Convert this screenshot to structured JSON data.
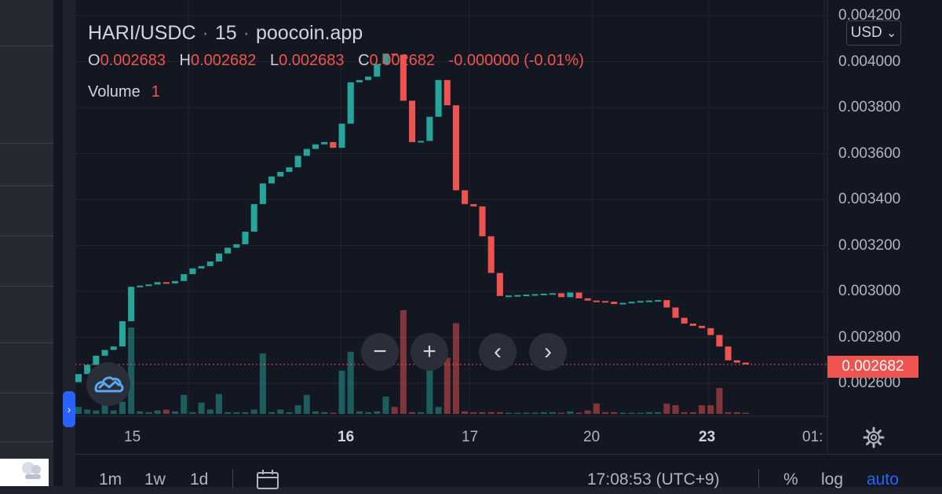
{
  "header": {
    "symbol": "HARI/USDC",
    "interval": "15",
    "source": "poocoin.app",
    "ohlc": {
      "o_key": "O",
      "o_val": "0.002683",
      "h_key": "H",
      "h_val": "0.002682",
      "l_key": "L",
      "l_val": "0.002683",
      "c_key": "C",
      "c_val": "0.002682",
      "change": "-0.000000 (-0.01%)"
    },
    "volume_label": "Volume",
    "volume_value": "1",
    "currency_button": "USD",
    "currency_chevron": "⌄"
  },
  "price_axis": {
    "labels": [
      "0.004200",
      "0.004000",
      "0.003800",
      "0.003600",
      "0.003400",
      "0.003200",
      "0.003000",
      "0.002800",
      "0.002600"
    ],
    "last_price": "0.002682"
  },
  "time_axis": {
    "labels": [
      {
        "text": "15",
        "bold": false
      },
      {
        "text": "16",
        "bold": true
      },
      {
        "text": "17",
        "bold": false
      },
      {
        "text": "20",
        "bold": false
      },
      {
        "text": "23",
        "bold": true
      },
      {
        "text": "01:",
        "bold": false
      }
    ]
  },
  "controls": {
    "zoom_out": "−",
    "zoom_in": "+",
    "scroll_left": "‹",
    "scroll_right": "›",
    "collapse": "›"
  },
  "bottom_bar": {
    "ranges": [
      "1m",
      "1w",
      "1d"
    ],
    "clock": "17:08:53 (UTC+9)",
    "percent": "%",
    "log": "log",
    "auto": "auto"
  },
  "icons": {
    "tradingview": "tradingview-logo-icon",
    "settings": "gear-icon",
    "calendar": "calendar-range-icon",
    "avatar": "logo-thumbnail-icon"
  },
  "colors": {
    "up": "#26a69a",
    "down": "#ef5350",
    "background": "#131722",
    "accent": "#2962ff"
  },
  "chart_data": {
    "type": "candlestick",
    "y_axis": {
      "min": 0.00246,
      "max": 0.00422,
      "scale": "linear"
    },
    "grid": true,
    "last_price_line": 0.002682,
    "candles": [
      [
        0.002605,
        0.00264
      ],
      [
        0.00264,
        0.00268
      ],
      [
        0.00268,
        0.00272
      ],
      [
        0.00272,
        0.002745
      ],
      [
        0.002745,
        0.00276
      ],
      [
        0.00276,
        0.00287
      ],
      [
        0.00287,
        0.00302
      ],
      [
        0.00302,
        0.003025
      ],
      [
        0.003025,
        0.00303
      ],
      [
        0.00303,
        0.00304
      ],
      [
        0.00304,
        0.003035
      ],
      [
        0.003035,
        0.003045
      ],
      [
        0.003045,
        0.003075
      ],
      [
        0.003075,
        0.0031
      ],
      [
        0.0031,
        0.00311
      ],
      [
        0.00311,
        0.00313
      ],
      [
        0.00313,
        0.003165
      ],
      [
        0.003165,
        0.00319
      ],
      [
        0.00319,
        0.003205
      ],
      [
        0.003205,
        0.00326
      ],
      [
        0.00326,
        0.00338
      ],
      [
        0.00338,
        0.00347
      ],
      [
        0.00347,
        0.0035
      ],
      [
        0.0035,
        0.00352
      ],
      [
        0.00352,
        0.00354
      ],
      [
        0.00354,
        0.00359
      ],
      [
        0.00359,
        0.00362
      ],
      [
        0.00362,
        0.00364
      ],
      [
        0.00364,
        0.00365
      ],
      [
        0.00365,
        0.003625
      ],
      [
        0.003625,
        0.00373
      ],
      [
        0.00373,
        0.00391
      ],
      [
        0.00391,
        0.00392
      ],
      [
        0.00392,
        0.003935
      ],
      [
        0.003935,
        0.00399
      ],
      [
        0.00399,
        0.004035
      ],
      [
        0.004035,
        0.00403
      ],
      [
        0.00403,
        0.00383
      ],
      [
        0.00383,
        0.00365
      ],
      [
        0.00365,
        0.003655
      ],
      [
        0.003655,
        0.00376
      ],
      [
        0.00376,
        0.00392
      ],
      [
        0.00392,
        0.00381
      ],
      [
        0.00381,
        0.00344
      ],
      [
        0.00344,
        0.00338
      ],
      [
        0.00338,
        0.00337
      ],
      [
        0.00337,
        0.00324
      ],
      [
        0.00324,
        0.00308
      ],
      [
        0.00308,
        0.00298
      ],
      [
        0.00298,
        0.002982
      ],
      [
        0.002982,
        0.002984
      ],
      [
        0.002984,
        0.002986
      ],
      [
        0.002986,
        0.002988
      ],
      [
        0.002988,
        0.00299
      ],
      [
        0.00299,
        0.002992
      ],
      [
        0.002992,
        0.002975
      ],
      [
        0.002975,
        0.002995
      ],
      [
        0.002995,
        0.00297
      ],
      [
        0.00297,
        0.00296
      ],
      [
        0.00296,
        0.002958
      ],
      [
        0.002958,
        0.002955
      ],
      [
        0.002955,
        0.002945
      ],
      [
        0.002945,
        0.00295
      ],
      [
        0.00295,
        0.002955
      ],
      [
        0.002955,
        0.002958
      ],
      [
        0.002958,
        0.00296
      ],
      [
        0.00296,
        0.002962
      ],
      [
        0.002962,
        0.00293
      ],
      [
        0.00293,
        0.002885
      ],
      [
        0.002885,
        0.00286
      ],
      [
        0.00286,
        0.00285
      ],
      [
        0.00285,
        0.00284
      ],
      [
        0.00284,
        0.00281
      ],
      [
        0.00281,
        0.00276
      ],
      [
        0.00276,
        0.0027
      ],
      [
        0.0027,
        0.00269
      ],
      [
        0.00269,
        0.002682
      ]
    ],
    "volumes": [
      0.08,
      0.05,
      0.04,
      0.2,
      0.04,
      0.14,
      1,
      0.03,
      0.02,
      0.04,
      0.05,
      0.03,
      0.22,
      0.02,
      0.13,
      0.05,
      0.23,
      0.02,
      0.02,
      0.02,
      0.05,
      0.7,
      0.02,
      0.05,
      0.02,
      0.1,
      0.22,
      0.03,
      0.02,
      0.01,
      0.5,
      0.72,
      0.03,
      0.02,
      0.03,
      0.2,
      0.08,
      1.2,
      0.02,
      0.02,
      0.7,
      0.08,
      0.65,
      1.05,
      0.03,
      0.02,
      0.02,
      0.02,
      0.02,
      0.01,
      0.01,
      0.01,
      0.01,
      0.02,
      0.02,
      0.01,
      0.03,
      0.01,
      0.04,
      0.12,
      0.02,
      0.02,
      0.01,
      0.01,
      0.01,
      0.02,
      0.02,
      0.12,
      0.1,
      0.02,
      0.02,
      0.1,
      0.1,
      0.3,
      0.02,
      0.02,
      0.01
    ]
  }
}
